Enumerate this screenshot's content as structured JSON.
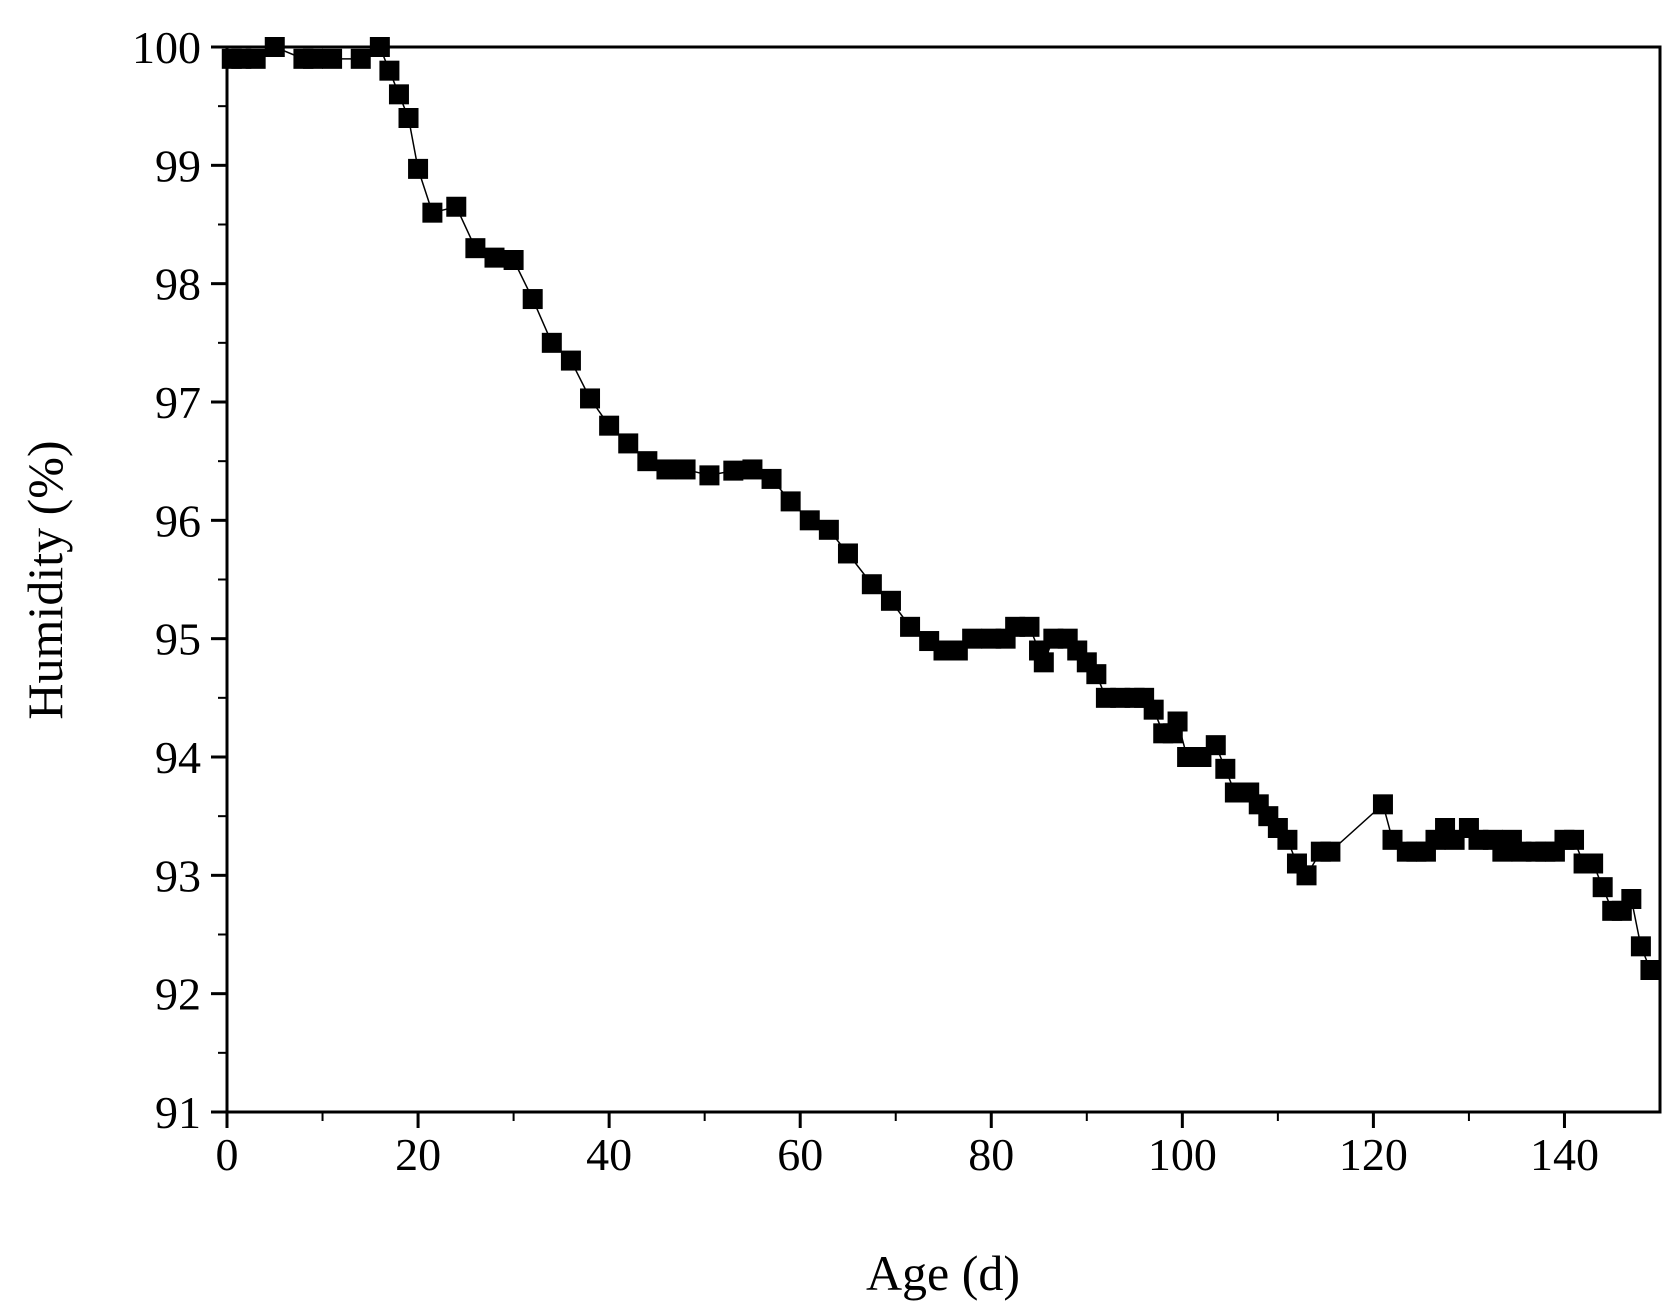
{
  "chart_data": {
    "type": "line",
    "xlabel": "Age (d)",
    "ylabel": "Humidity (%)",
    "xlim": [
      0,
      150
    ],
    "xticks": [
      0,
      20,
      40,
      60,
      80,
      100,
      120,
      140
    ],
    "ylim": [
      91,
      100
    ],
    "yticks": [
      91,
      92,
      93,
      94,
      95,
      96,
      97,
      98,
      99,
      100
    ],
    "series": [
      {
        "color": "#000000",
        "x": [
          0.5,
          1.5,
          3,
          5,
          8,
          9,
          11,
          14,
          16,
          17,
          18,
          19,
          20,
          21.5,
          24,
          26,
          28,
          30,
          32,
          34,
          36,
          38,
          40,
          42,
          44,
          46,
          48,
          50.5,
          53,
          55,
          57,
          59,
          61,
          63,
          65,
          67.5,
          69.5,
          71.5,
          73.5,
          75,
          76.5,
          78,
          80,
          81.5,
          82.5,
          84,
          85,
          85.5,
          86.5,
          88,
          89,
          90,
          91,
          92,
          93.5,
          95,
          96,
          97,
          98,
          99,
          99.5,
          100.5,
          102,
          103.5,
          104.5,
          105.5,
          107,
          108,
          109,
          110,
          111,
          112,
          113,
          114.5,
          115.5,
          121,
          122,
          123.5,
          124.5,
          125.5,
          126.5,
          127.5,
          128.5,
          130,
          131,
          132.5,
          133.5,
          134.5,
          135.5,
          137,
          138,
          139,
          140,
          141,
          142,
          143,
          144,
          145,
          146,
          147,
          148,
          149
        ],
        "values": [
          99.9,
          99.9,
          99.9,
          100,
          99.9,
          99.9,
          99.9,
          99.9,
          100,
          99.8,
          99.6,
          99.4,
          98.97,
          98.6,
          98.65,
          98.3,
          98.22,
          98.2,
          97.87,
          97.5,
          97.35,
          97.03,
          96.8,
          96.65,
          96.5,
          96.43,
          96.43,
          96.38,
          96.42,
          96.43,
          96.35,
          96.16,
          96.0,
          95.92,
          95.72,
          95.46,
          95.32,
          95.1,
          94.98,
          94.9,
          94.9,
          95.0,
          95.0,
          95.0,
          95.1,
          95.1,
          94.9,
          94.8,
          95.0,
          95.0,
          94.9,
          94.8,
          94.7,
          94.5,
          94.5,
          94.5,
          94.5,
          94.4,
          94.2,
          94.2,
          94.3,
          94.0,
          94.0,
          94.1,
          93.9,
          93.7,
          93.7,
          93.6,
          93.5,
          93.4,
          93.3,
          93.1,
          93.0,
          93.2,
          93.2,
          93.6,
          93.3,
          93.2,
          93.2,
          93.2,
          93.3,
          93.4,
          93.3,
          93.4,
          93.3,
          93.3,
          93.2,
          93.3,
          93.2,
          93.2,
          93.2,
          93.2,
          93.3,
          93.3,
          93.1,
          93.1,
          92.9,
          92.7,
          92.7,
          92.8,
          92.4,
          92.2
        ]
      }
    ]
  }
}
